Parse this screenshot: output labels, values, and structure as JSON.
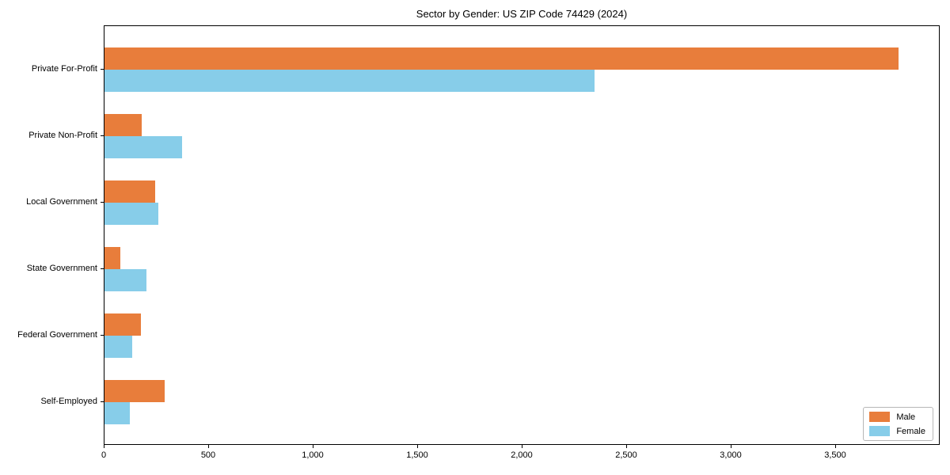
{
  "title": "Sector by Gender: US ZIP Code 74429 (2024)",
  "colors": {
    "male": "#e87d3b",
    "female": "#87cde9",
    "axis": "#000000",
    "legend_border": "#b7b7b7",
    "background": "#ffffff"
  },
  "chart_data": {
    "type": "bar",
    "orientation": "horizontal",
    "title": "Sector by Gender: US ZIP Code 74429 (2024)",
    "xlabel": "",
    "ylabel": "",
    "categories": [
      "Private For-Profit",
      "Private Non-Profit",
      "Local Government",
      "State Government",
      "Federal Government",
      "Self-Employed"
    ],
    "series": [
      {
        "name": "Male",
        "color": "#e87d3b",
        "values": [
          3800,
          179,
          242,
          76,
          174,
          289
        ]
      },
      {
        "name": "Female",
        "color": "#87cde9",
        "values": [
          2344,
          372,
          257,
          201,
          133,
          122
        ]
      }
    ],
    "xlim": [
      0,
      4000
    ],
    "x_ticks": [
      0,
      500,
      1000,
      1500,
      2000,
      2500,
      3000,
      3500
    ],
    "x_tick_labels": [
      "0",
      "500",
      "1,000",
      "1,500",
      "2,000",
      "2,500",
      "3,000",
      "3,500"
    ],
    "grid": false,
    "legend": {
      "position": "lower right",
      "entries": [
        "Male",
        "Female"
      ]
    }
  }
}
